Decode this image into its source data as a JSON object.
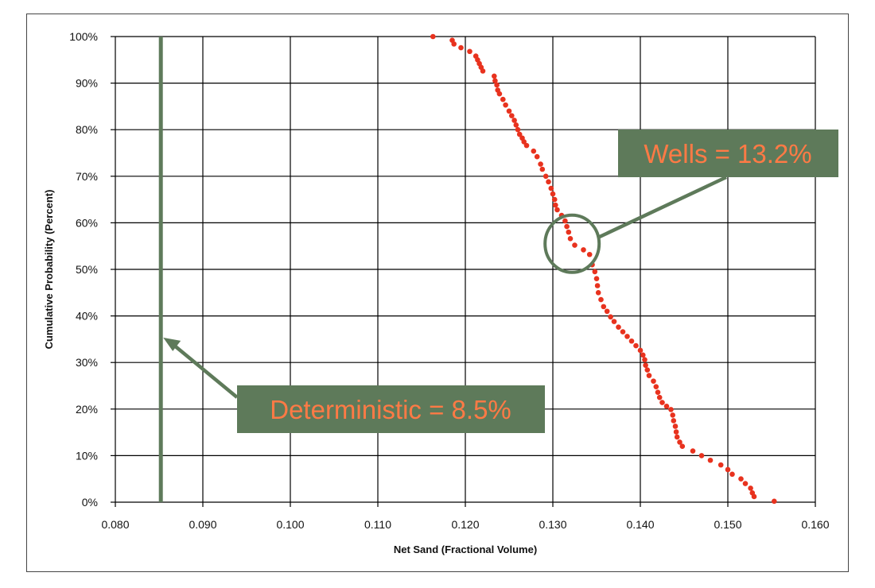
{
  "chart_data": {
    "type": "scatter",
    "title": "",
    "xlabel": "Net Sand (Fractional Volume)",
    "ylabel": "Cumulative Probability (Percent)",
    "xlim": [
      0.08,
      0.16
    ],
    "ylim": [
      0,
      100
    ],
    "x_ticks": [
      "0.080",
      "0.090",
      "0.100",
      "0.110",
      "0.120",
      "0.130",
      "0.140",
      "0.150",
      "0.160"
    ],
    "y_ticks": [
      "0%",
      "10%",
      "20%",
      "30%",
      "40%",
      "50%",
      "60%",
      "70%",
      "80%",
      "90%",
      "100%"
    ],
    "grid": true,
    "series": [
      {
        "name": "",
        "color": "#e8321e",
        "points": [
          [
            0.1163,
            100
          ],
          [
            0.1185,
            99.2
          ],
          [
            0.1187,
            98.4
          ],
          [
            0.1195,
            97.6
          ],
          [
            0.1205,
            96.8
          ],
          [
            0.1212,
            95.8
          ],
          [
            0.1214,
            95.0
          ],
          [
            0.1216,
            94.2
          ],
          [
            0.1218,
            93.4
          ],
          [
            0.122,
            92.6
          ],
          [
            0.1233,
            91.5
          ],
          [
            0.1234,
            90.5
          ],
          [
            0.1236,
            89.6
          ],
          [
            0.1237,
            88.5
          ],
          [
            0.1239,
            87.7
          ],
          [
            0.1243,
            86.5
          ],
          [
            0.1246,
            85.3
          ],
          [
            0.125,
            84.0
          ],
          [
            0.1253,
            83.0
          ],
          [
            0.1256,
            82.0
          ],
          [
            0.1258,
            81.0
          ],
          [
            0.126,
            80.0
          ],
          [
            0.1262,
            79.0
          ],
          [
            0.1265,
            78.2
          ],
          [
            0.1267,
            77.4
          ],
          [
            0.127,
            76.6
          ],
          [
            0.1278,
            75.4
          ],
          [
            0.1282,
            74.2
          ],
          [
            0.1286,
            72.6
          ],
          [
            0.1288,
            71.5
          ],
          [
            0.1292,
            70.0
          ],
          [
            0.1295,
            68.8
          ],
          [
            0.1298,
            67.4
          ],
          [
            0.13,
            66.2
          ],
          [
            0.1302,
            65.0
          ],
          [
            0.1303,
            63.8
          ],
          [
            0.1305,
            62.8
          ],
          [
            0.131,
            61.6
          ],
          [
            0.1314,
            60.4
          ],
          [
            0.1316,
            59.2
          ],
          [
            0.1318,
            58.0
          ],
          [
            0.132,
            56.6
          ],
          [
            0.1325,
            55.2
          ],
          [
            0.1335,
            54.2
          ],
          [
            0.1342,
            53.2
          ],
          [
            0.1345,
            51.0
          ],
          [
            0.1348,
            49.5
          ],
          [
            0.135,
            48.0
          ],
          [
            0.1351,
            46.5
          ],
          [
            0.1352,
            45.0
          ],
          [
            0.1355,
            43.5
          ],
          [
            0.1358,
            42.0
          ],
          [
            0.1362,
            41.0
          ],
          [
            0.1366,
            39.8
          ],
          [
            0.137,
            38.8
          ],
          [
            0.1375,
            37.6
          ],
          [
            0.138,
            36.6
          ],
          [
            0.1385,
            35.6
          ],
          [
            0.139,
            34.6
          ],
          [
            0.1395,
            33.6
          ],
          [
            0.14,
            32.6
          ],
          [
            0.1403,
            31.6
          ],
          [
            0.1405,
            30.6
          ],
          [
            0.1406,
            29.4
          ],
          [
            0.1408,
            28.4
          ],
          [
            0.141,
            27.2
          ],
          [
            0.1415,
            26.0
          ],
          [
            0.1418,
            24.8
          ],
          [
            0.142,
            23.6
          ],
          [
            0.1422,
            22.5
          ],
          [
            0.1425,
            21.4
          ],
          [
            0.143,
            20.6
          ],
          [
            0.1435,
            19.9
          ],
          [
            0.1437,
            18.7
          ],
          [
            0.1438,
            17.5
          ],
          [
            0.144,
            16.3
          ],
          [
            0.1441,
            15.1
          ],
          [
            0.1442,
            14.0
          ],
          [
            0.1445,
            12.9
          ],
          [
            0.1448,
            12.0
          ],
          [
            0.146,
            11.0
          ],
          [
            0.147,
            10.0
          ],
          [
            0.148,
            9.0
          ],
          [
            0.1492,
            8.0
          ],
          [
            0.15,
            7.0
          ],
          [
            0.1505,
            6.0
          ],
          [
            0.1515,
            5.0
          ],
          [
            0.152,
            4.0
          ],
          [
            0.1526,
            3.0
          ],
          [
            0.1528,
            2.0
          ],
          [
            0.153,
            1.2
          ],
          [
            0.1553,
            0.2
          ]
        ]
      }
    ],
    "reference_line": {
      "x": 0.0852,
      "color": "#5e7a5a"
    },
    "annotations": [
      {
        "text": "Wells = 13.2%",
        "box_color": "#5e7a5a",
        "text_color": "#ff7a45",
        "circle_x": 0.1322,
        "circle_y": 55.5
      },
      {
        "text": "Deterministic = 8.5%",
        "box_color": "#5e7a5a",
        "text_color": "#ff7a45",
        "arrow_x": 0.0852,
        "arrow_y": 35
      }
    ]
  }
}
